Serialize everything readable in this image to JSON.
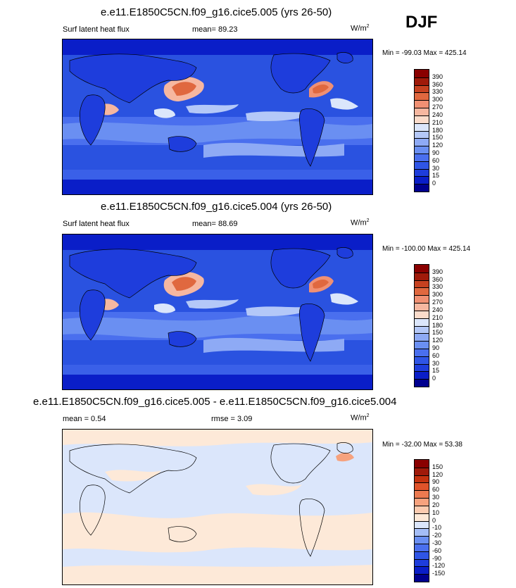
{
  "season": "DJF",
  "panels": [
    {
      "title": "e.e11.E1850C5CN.f09_g16.cice5.005 (yrs 26-50)",
      "variable": "Surf latent heat flux",
      "stat": "mean=  89.23",
      "units": "W/m",
      "units_sup": "2",
      "minmax": "Min = -99.03 Max = 425.14"
    },
    {
      "title": "e.e11.E1850C5CN.f09_g16.cice5.004 (yrs 26-50)",
      "variable": "Surf latent heat flux",
      "stat": "mean=  88.69",
      "units": "W/m",
      "units_sup": "2",
      "minmax": "Min = -100.00 Max = 425.14"
    },
    {
      "title": "e.e11.E1850C5CN.f09_g16.cice5.005 - e.e11.E1850C5CN.f09_g16.cice5.004",
      "stat": "mean =   0.54",
      "rmse": "rmse =   3.09",
      "units": "W/m",
      "units_sup": "2",
      "minmax": "Min = -32.00 Max = 53.38"
    }
  ],
  "chart_data": [
    {
      "type": "heatmap",
      "title": "e.e11.E1850C5CN.f09_g16.cice5.005 (yrs 26-50)",
      "variable": "Surf latent heat flux",
      "mean": 89.23,
      "min": -99.03,
      "max": 425.14,
      "units": "W/m2",
      "colorbar_levels": [
        0,
        15,
        30,
        60,
        90,
        120,
        150,
        180,
        210,
        240,
        270,
        300,
        330,
        360,
        390
      ],
      "colorbar_colors": [
        "#00008f",
        "#0a1ec8",
        "#1e3ddc",
        "#2f55e6",
        "#4a6fee",
        "#6a8ff2",
        "#8eaaf5",
        "#b4c8f8",
        "#dbe6fb",
        "#fbdccb",
        "#f6b7a0",
        "#f09073",
        "#e0683f",
        "#c64120",
        "#a01a0a",
        "#8a0000"
      ]
    },
    {
      "type": "heatmap",
      "title": "e.e11.E1850C5CN.f09_g16.cice5.004 (yrs 26-50)",
      "variable": "Surf latent heat flux",
      "mean": 88.69,
      "min": -100.0,
      "max": 425.14,
      "units": "W/m2",
      "colorbar_levels": [
        0,
        15,
        30,
        60,
        90,
        120,
        150,
        180,
        210,
        240,
        270,
        300,
        330,
        360,
        390
      ],
      "colorbar_colors": [
        "#00008f",
        "#0a1ec8",
        "#1e3ddc",
        "#2f55e6",
        "#4a6fee",
        "#6a8ff2",
        "#8eaaf5",
        "#b4c8f8",
        "#dbe6fb",
        "#fbdccb",
        "#f6b7a0",
        "#f09073",
        "#e0683f",
        "#c64120",
        "#a01a0a",
        "#8a0000"
      ]
    },
    {
      "type": "heatmap",
      "title": "e.e11.E1850C5CN.f09_g16.cice5.005 - e.e11.E1850C5CN.f09_g16.cice5.004",
      "mean": 0.54,
      "rmse": 3.09,
      "min": -32.0,
      "max": 53.38,
      "units": "W/m2",
      "colorbar_levels": [
        -150,
        -120,
        -90,
        -60,
        -30,
        -20,
        -10,
        0,
        10,
        20,
        30,
        60,
        90,
        120,
        150
      ],
      "colorbar_colors": [
        "#00008f",
        "#0a1ec8",
        "#1e3ddc",
        "#2f55e6",
        "#4a6fee",
        "#6a8ff2",
        "#a4bdf6",
        "#dbe6fb",
        "#fde9d8",
        "#fbcbb0",
        "#f6a27e",
        "#ec7a50",
        "#e0532a",
        "#c4320f",
        "#a01a0a",
        "#8a0000"
      ]
    }
  ]
}
